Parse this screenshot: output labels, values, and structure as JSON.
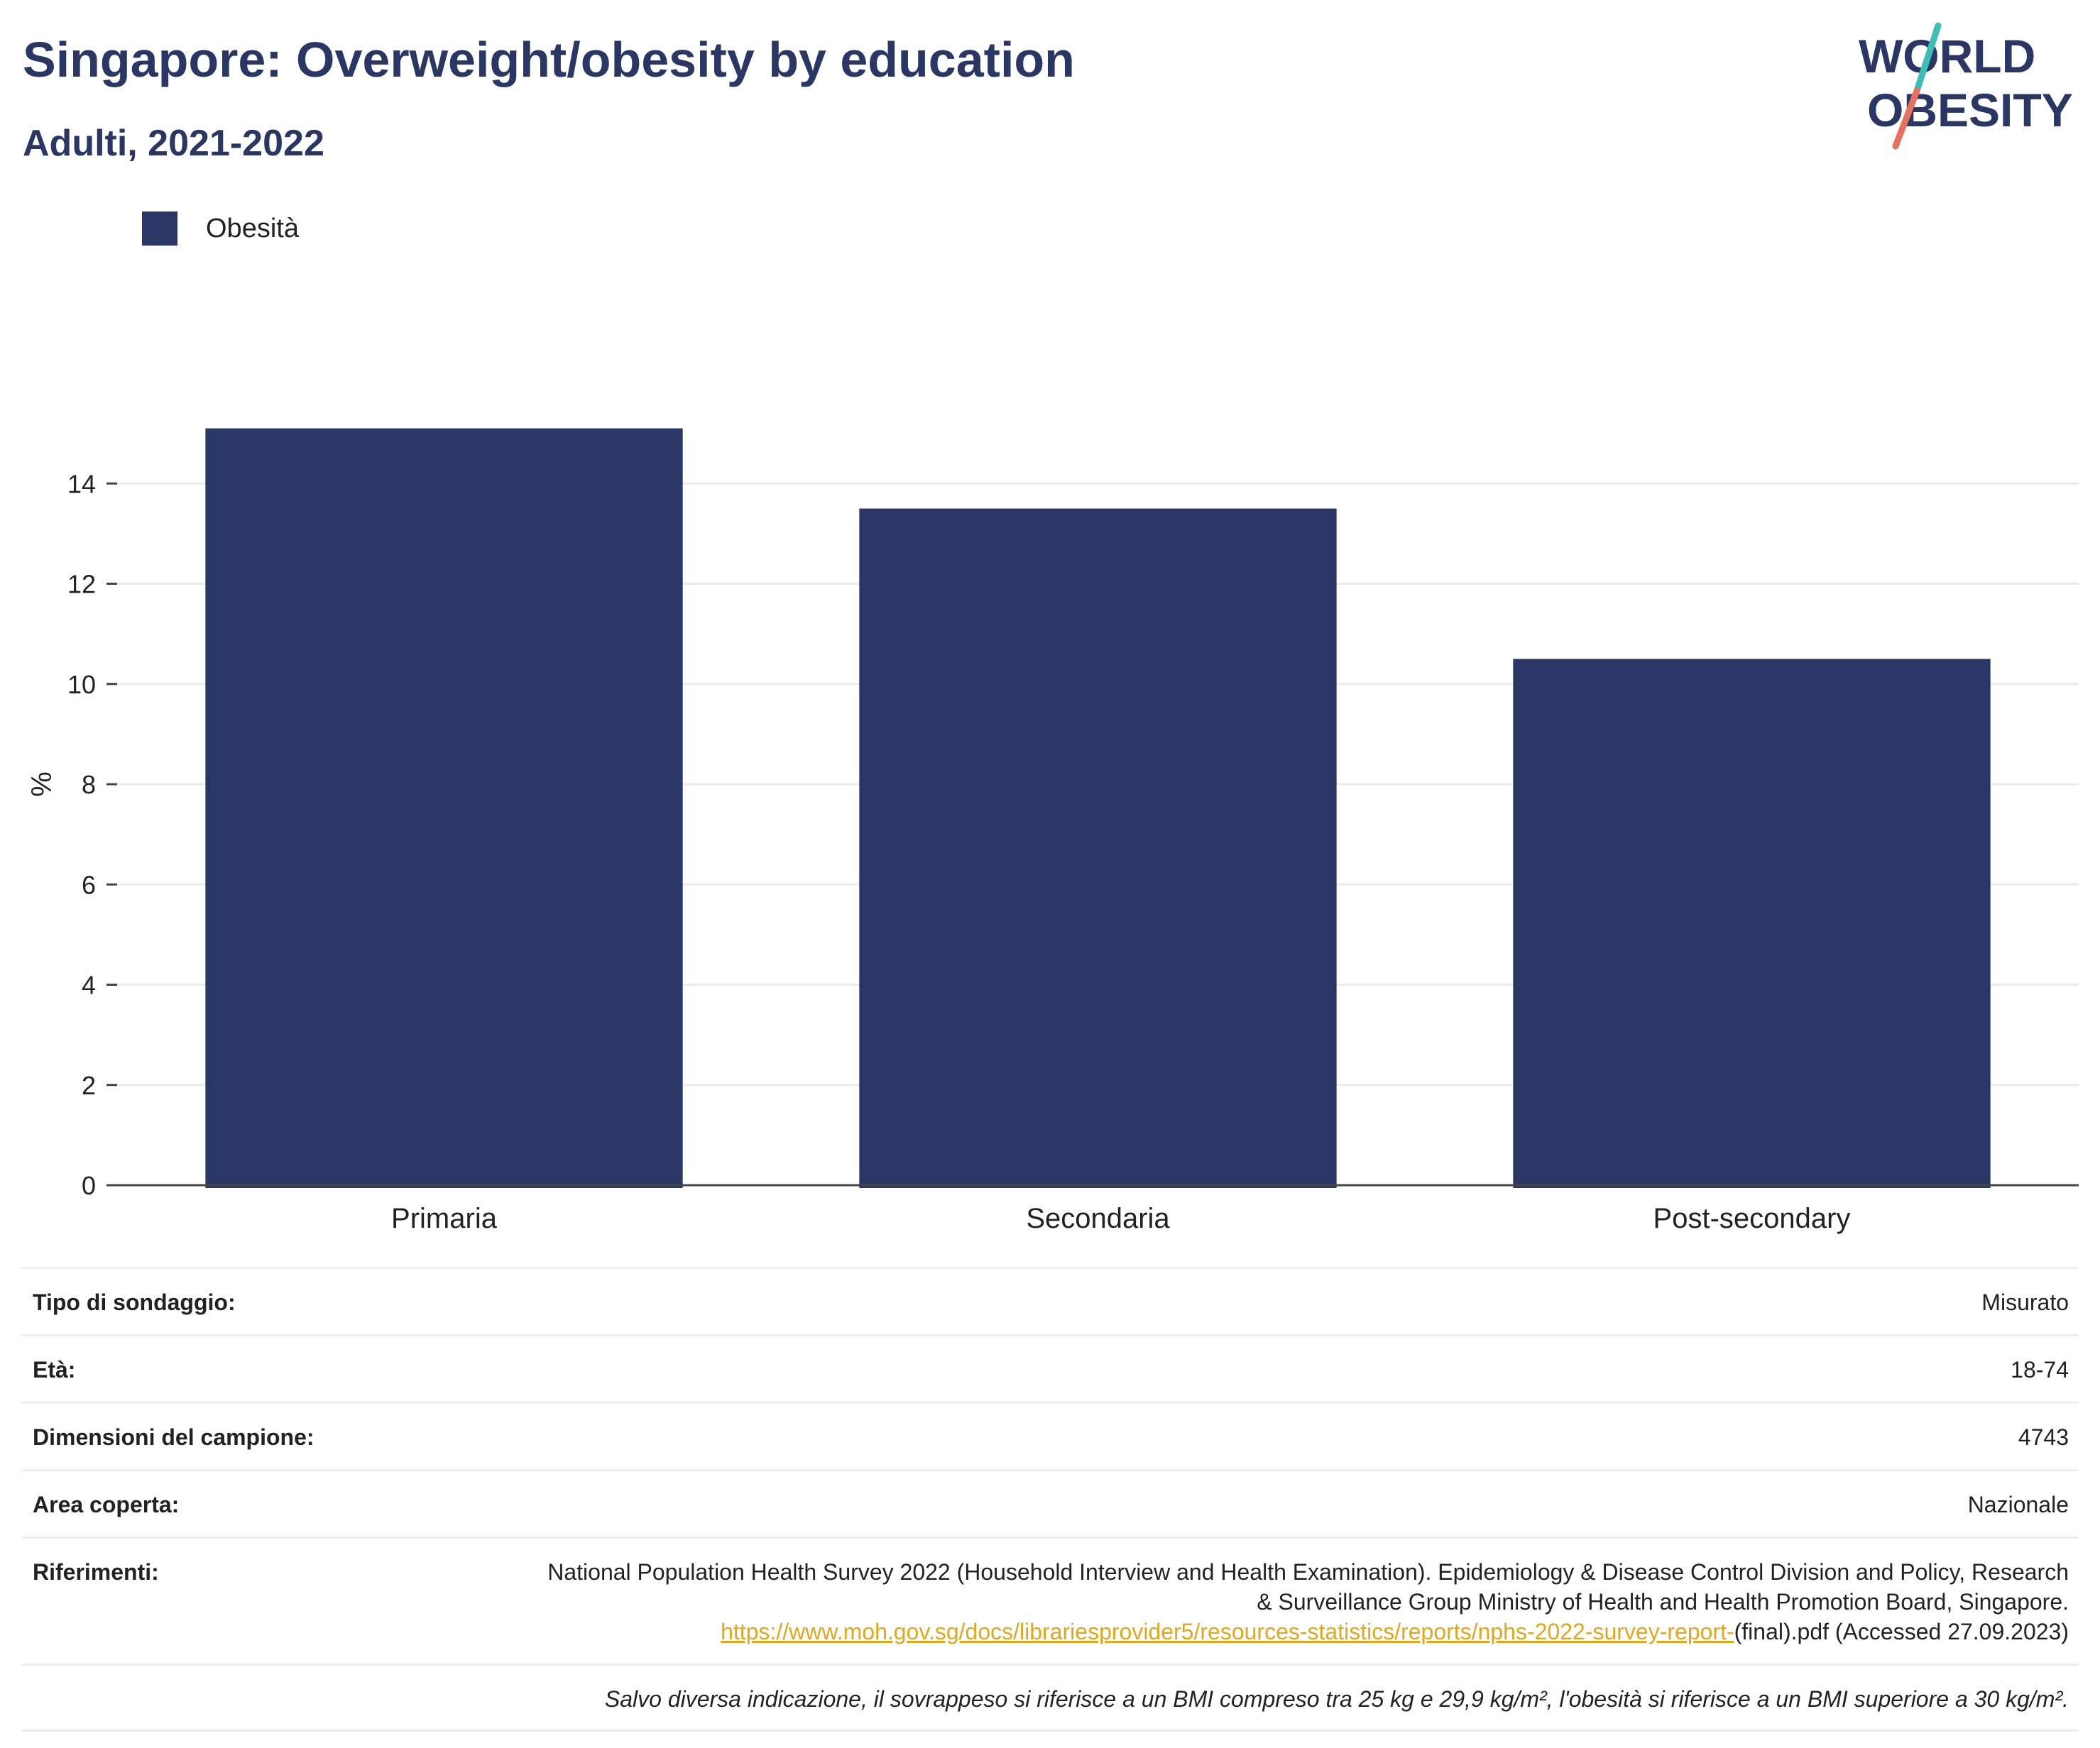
{
  "header": {
    "title": "Singapore: Overweight/obesity by education",
    "subtitle": "Adulti, 2021-2022"
  },
  "logo": {
    "line1": "WORLD",
    "line2": "OBESITY",
    "colors": {
      "text": "#2a3663",
      "slash_top": "#3bbfb5",
      "slash_bottom": "#e8705e"
    }
  },
  "chart_data": {
    "type": "bar",
    "categories": [
      "Primaria",
      "Secondaria",
      "Post-secondary"
    ],
    "series": [
      {
        "name": "Obesità",
        "values": [
          15.1,
          13.5,
          10.5
        ],
        "color": "#2a3663"
      }
    ],
    "ylabel": "%",
    "xlabel": "",
    "ylim": [
      0,
      16
    ],
    "yticks": [
      0,
      2,
      4,
      6,
      8,
      10,
      12,
      14
    ],
    "grid": true,
    "legend_position": "top-left"
  },
  "meta": {
    "rows": [
      {
        "label": "Tipo di sondaggio:",
        "value": "Misurato"
      },
      {
        "label": "Età:",
        "value": "18-74"
      },
      {
        "label": "Dimensioni del campione:",
        "value": "4743"
      },
      {
        "label": "Area coperta:",
        "value": "Nazionale"
      }
    ],
    "references": {
      "label": "Riferimenti:",
      "text": "National Population Health Survey 2022 (Household Interview and Health Examination). Epidemiology & Disease Control Division and Policy, Research & Surveillance Group Ministry of Health and Health Promotion Board, Singapore.",
      "link": "https://www.moh.gov.sg/docs/librariesprovider5/resources-statistics/reports/nphs-2022-survey-report-",
      "tail": "(final).pdf (Accessed 27.09.2023)"
    },
    "note": "Salvo diversa indicazione, il sovrappeso si riferisce a un BMI compreso tra 25 kg e 29,9 kg/m², l'obesità si riferisce a un BMI superiore a 30 kg/m²."
  }
}
